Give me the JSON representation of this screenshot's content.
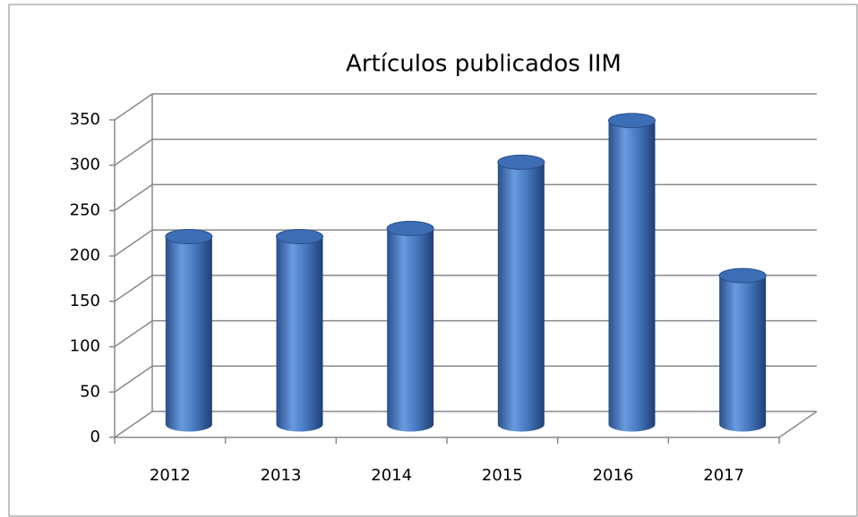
{
  "chart_data": {
    "type": "bar3d",
    "title": "Artículos publicados IIM",
    "categories": [
      "2012",
      "2013",
      "2014",
      "2015",
      "2016",
      "2017"
    ],
    "values": [
      207,
      207,
      216,
      289,
      335,
      164
    ],
    "color": "#4a7cc4",
    "ylim": [
      0,
      350
    ],
    "yticks": [
      0,
      50,
      100,
      150,
      200,
      250,
      300,
      350
    ],
    "grid": true
  }
}
